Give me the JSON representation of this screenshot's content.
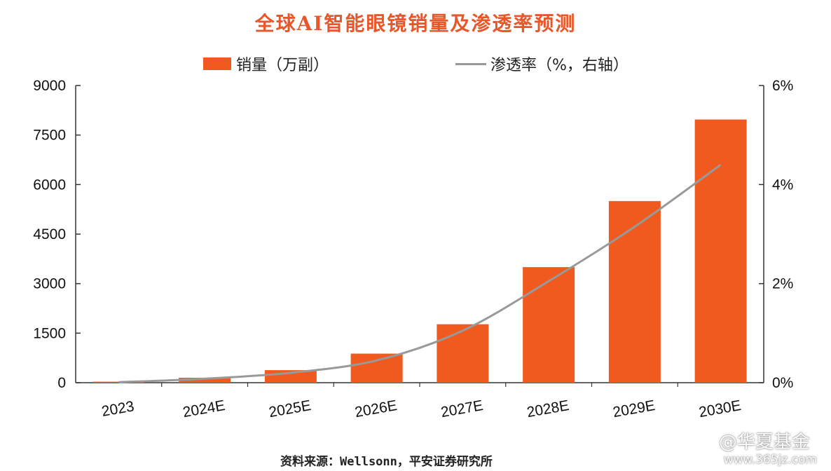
{
  "title": "全球AI智能眼镜销量及渗透率预测",
  "legend": {
    "bar_label": "销量（万副）",
    "line_label": "渗透率（%，右轴）"
  },
  "source": "资料来源：Wellsonn，平安证券研究所",
  "watermark": {
    "brand": "@华夏基金",
    "url": "www.365jz.com"
  },
  "colors": {
    "bar": "#f05a1e",
    "line": "#999999",
    "title": "#e8572a"
  },
  "chart_data": {
    "type": "bar",
    "categories": [
      "2023",
      "2024E",
      "2025E",
      "2026E",
      "2027E",
      "2028E",
      "2029E",
      "2030E"
    ],
    "series": [
      {
        "name": "销量（万副）",
        "type": "bar",
        "axis": "left",
        "values": [
          30,
          150,
          380,
          880,
          1770,
          3500,
          5500,
          7970
        ]
      },
      {
        "name": "渗透率（%，右轴）",
        "type": "line",
        "axis": "right",
        "values": [
          0.01,
          0.08,
          0.2,
          0.45,
          1.05,
          2.05,
          3.15,
          4.4
        ]
      }
    ],
    "y_left": {
      "ylim": [
        0,
        9000
      ],
      "ticks": [
        "0",
        "1500",
        "3000",
        "4500",
        "6000",
        "7500",
        "9000"
      ]
    },
    "y_right": {
      "ylim": [
        0,
        6
      ],
      "ticks": [
        "0%",
        "2%",
        "4%",
        "6%"
      ]
    },
    "grid": false,
    "legend_position": "top"
  }
}
